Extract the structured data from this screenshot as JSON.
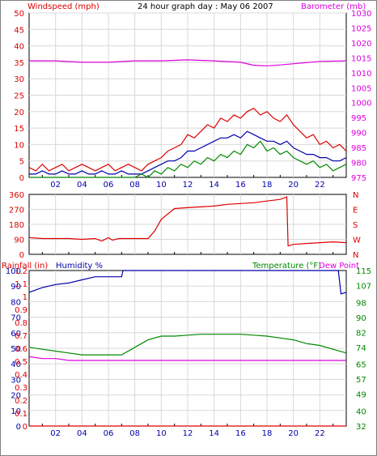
{
  "header": {
    "left_label": "Windspeed (mph)",
    "title": "24 hour graph day : May 06 2007",
    "right_label": "Barometer (mb)"
  },
  "colors": {
    "wind": "#dd0000",
    "gust_navy": "#0000aa",
    "green": "#008800",
    "baro": "#dd00dd",
    "grid": "#d8d8d8",
    "frame": "#000000"
  },
  "chart_data": [
    {
      "type": "line",
      "title": "24 hour graph day : May 06 2007",
      "x_ticks": [
        "02",
        "04",
        "06",
        "08",
        "10",
        "12",
        "14",
        "16",
        "18",
        "20",
        "22"
      ],
      "x_range_hours": [
        0,
        24
      ],
      "left_axis": {
        "label": "Windspeed (mph)",
        "ticks": [
          0,
          5,
          10,
          15,
          20,
          25,
          30,
          35,
          40,
          45,
          50
        ],
        "range": [
          0,
          50
        ]
      },
      "right_axis": {
        "label": "Barometer (mb)",
        "ticks": [
          975,
          980,
          985,
          990,
          995,
          1000,
          1005,
          1010,
          1015,
          1020,
          1025,
          1030
        ],
        "range": [
          975,
          1030
        ]
      },
      "series": [
        {
          "axis": "left",
          "color": "#dd0000",
          "x": [
            0,
            0.5,
            1,
            1.5,
            2,
            2.5,
            3,
            3.5,
            4,
            4.5,
            5,
            5.5,
            6,
            6.5,
            7,
            7.5,
            8,
            8.5,
            9,
            9.5,
            10,
            10.5,
            11,
            11.5,
            12,
            12.5,
            13,
            13.5,
            14,
            14.5,
            15,
            15.5,
            16,
            16.5,
            17,
            17.5,
            18,
            18.5,
            19,
            19.5,
            20,
            20.5,
            21,
            21.5,
            22,
            22.5,
            23,
            23.5,
            24
          ],
          "y": [
            3,
            2,
            4,
            2,
            3,
            4,
            2,
            3,
            4,
            3,
            2,
            3,
            4,
            2,
            3,
            4,
            3,
            2,
            4,
            5,
            6,
            8,
            9,
            10,
            13,
            12,
            14,
            16,
            15,
            18,
            17,
            19,
            18,
            20,
            21,
            19,
            20,
            18,
            17,
            19,
            16,
            14,
            12,
            13,
            10,
            11,
            9,
            10,
            8
          ]
        },
        {
          "axis": "left",
          "color": "#0000aa",
          "x": [
            0,
            0.5,
            1,
            1.5,
            2,
            2.5,
            3,
            3.5,
            4,
            4.5,
            5,
            5.5,
            6,
            6.5,
            7,
            7.5,
            8,
            8.5,
            9,
            9.5,
            10,
            10.5,
            11,
            11.5,
            12,
            12.5,
            13,
            13.5,
            14,
            14.5,
            15,
            15.5,
            16,
            16.5,
            17,
            17.5,
            18,
            18.5,
            19,
            19.5,
            20,
            20.5,
            21,
            21.5,
            22,
            22.5,
            23,
            23.5,
            24
          ],
          "y": [
            1,
            1,
            2,
            1,
            1,
            2,
            1,
            1,
            2,
            1,
            1,
            2,
            1,
            1,
            2,
            1,
            1,
            1,
            2,
            3,
            4,
            5,
            5,
            6,
            8,
            8,
            9,
            10,
            11,
            12,
            12,
            13,
            12,
            14,
            13,
            12,
            11,
            11,
            10,
            11,
            9,
            8,
            7,
            7,
            6,
            6,
            5,
            5,
            6
          ]
        },
        {
          "axis": "left",
          "color": "#008800",
          "x": [
            0,
            1,
            2,
            3,
            4,
            5,
            6,
            7,
            8,
            8.5,
            9,
            9.5,
            10,
            10.5,
            11,
            11.5,
            12,
            12.5,
            13,
            13.5,
            14,
            14.5,
            15,
            15.5,
            16,
            16.5,
            17,
            17.5,
            18,
            18.5,
            19,
            19.5,
            20,
            20.5,
            21,
            21.5,
            22,
            22.5,
            23,
            23.5,
            24
          ],
          "y": [
            0,
            0,
            0,
            0,
            0,
            0,
            0,
            0,
            0,
            1,
            0,
            2,
            1,
            3,
            2,
            4,
            3,
            5,
            4,
            6,
            5,
            7,
            6,
            8,
            7,
            10,
            9,
            11,
            8,
            9,
            7,
            8,
            6,
            5,
            4,
            5,
            3,
            4,
            2,
            3,
            4
          ]
        },
        {
          "axis": "right",
          "color": "#dd00dd",
          "x": [
            0,
            2,
            4,
            6,
            8,
            10,
            12,
            14,
            16,
            17,
            18,
            19,
            20,
            22,
            24
          ],
          "y": [
            1014,
            1014,
            1013.5,
            1013.5,
            1014,
            1014,
            1014.3,
            1014,
            1013.5,
            1012.5,
            1012.3,
            1012.6,
            1013,
            1013.8,
            1014
          ]
        }
      ]
    },
    {
      "type": "line",
      "x_ticks": [
        "02",
        "04",
        "06",
        "08",
        "10",
        "12",
        "14",
        "16",
        "18",
        "20",
        "22"
      ],
      "left_axis": {
        "ticks": [
          0,
          90,
          180,
          270,
          360
        ],
        "range": [
          0,
          360
        ]
      },
      "right_axis": {
        "ticks": [
          "N",
          "W",
          "S",
          "E",
          "N"
        ]
      },
      "series": [
        {
          "axis": "left",
          "color": "#dd0000",
          "x": [
            0,
            1,
            2,
            3,
            4,
            5,
            5.5,
            6,
            6.3,
            6.8,
            7,
            8,
            9,
            9.5,
            10,
            11,
            12,
            13,
            14,
            15,
            16,
            17,
            18,
            19,
            19.5,
            19.6,
            20,
            21,
            22,
            23,
            24
          ],
          "y": [
            100,
            95,
            95,
            95,
            90,
            95,
            80,
            100,
            85,
            95,
            95,
            95,
            95,
            140,
            210,
            275,
            280,
            285,
            290,
            300,
            305,
            310,
            320,
            330,
            345,
            50,
            60,
            65,
            70,
            75,
            70
          ]
        }
      ]
    },
    {
      "type": "line",
      "x_ticks": [
        "02",
        "04",
        "06",
        "08",
        "10",
        "12",
        "14",
        "16",
        "18",
        "20",
        "22"
      ],
      "legend": [
        "Rainfall (in)",
        "Humidity %",
        "Temperature (°F)",
        "Dew Point"
      ],
      "left_axis_rain": {
        "label": "Rainfall (in)",
        "ticks": [
          "0",
          "0.1",
          "0.2",
          "0.3",
          "0.4",
          "0.5",
          "0.6",
          "0.7",
          "0.8",
          "0.9",
          "1",
          "1.1",
          "1.2"
        ],
        "range": [
          0,
          1.2
        ]
      },
      "left_axis_humidity": {
        "label": "Humidity %",
        "ticks": [
          0,
          10,
          20,
          30,
          40,
          50,
          60,
          70,
          80,
          90,
          100
        ],
        "range": [
          0,
          100
        ]
      },
      "right_axis": {
        "label": "Temperature (°F)",
        "ticks": [
          32,
          40,
          49,
          57,
          65,
          74,
          82,
          90,
          98,
          107,
          115
        ],
        "range": [
          32,
          115
        ]
      },
      "series": [
        {
          "name": "Rainfall (in)",
          "axis": "rain",
          "color": "#dd0000",
          "x": [
            0,
            24
          ],
          "y": [
            0,
            0
          ]
        },
        {
          "name": "Humidity %",
          "axis": "humidity",
          "color": "#0000aa",
          "x": [
            0,
            1,
            2,
            3,
            4,
            5,
            6,
            7,
            7.1,
            8,
            10,
            12,
            14,
            16,
            18,
            20,
            22,
            23,
            23.4,
            23.6,
            24
          ],
          "y": [
            86,
            89,
            91,
            92,
            94,
            96,
            96,
            96,
            100,
            100,
            100,
            100,
            100,
            100,
            100,
            100,
            100,
            100,
            100,
            85,
            86
          ]
        },
        {
          "name": "Temperature (°F)",
          "axis": "right",
          "color": "#008800",
          "x": [
            0,
            1,
            2,
            3,
            4,
            5,
            6,
            7,
            8,
            9,
            10,
            11,
            12,
            13,
            14,
            15,
            16,
            17,
            18,
            19,
            20,
            21,
            22,
            23,
            24
          ],
          "y": [
            74,
            73,
            72,
            71,
            70,
            70,
            70,
            70,
            74,
            78,
            80,
            80,
            80.5,
            81,
            81,
            81,
            81,
            80.5,
            80,
            79,
            78,
            76,
            75,
            73,
            71
          ]
        },
        {
          "name": "Dew Point",
          "axis": "right",
          "color": "#dd00dd",
          "x": [
            0,
            1,
            2,
            3,
            4,
            5,
            6,
            7,
            7.5,
            23.5,
            24
          ],
          "y": [
            69,
            68,
            68,
            67,
            67,
            67,
            67,
            67,
            67,
            67,
            67
          ]
        }
      ]
    }
  ]
}
